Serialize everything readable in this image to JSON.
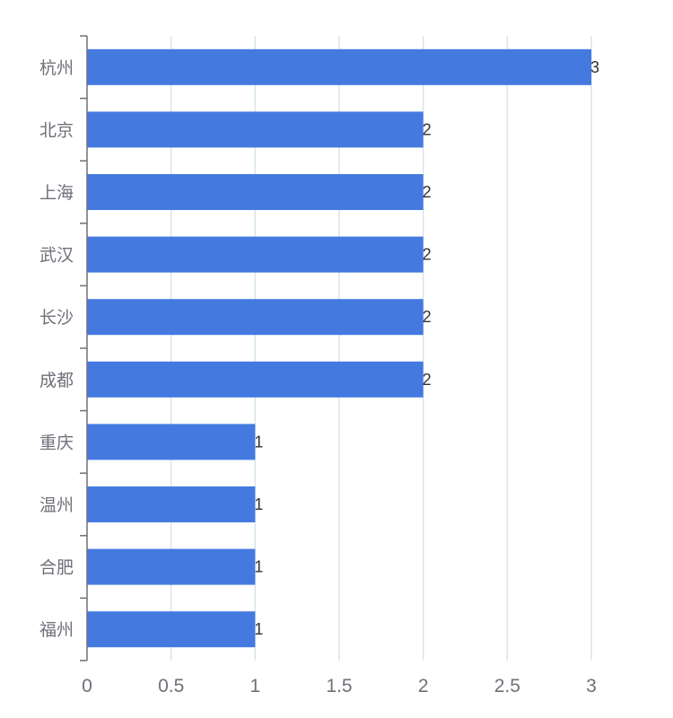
{
  "chart_data": {
    "type": "bar",
    "orientation": "horizontal",
    "categories": [
      "杭州",
      "北京",
      "上海",
      "武汉",
      "长沙",
      "成都",
      "重庆",
      "温州",
      "合肥",
      "福州"
    ],
    "values": [
      3,
      2,
      2,
      2,
      2,
      2,
      1,
      1,
      1,
      1
    ],
    "x_ticks": [
      "0",
      "0.5",
      "1",
      "1.5",
      "2",
      "2.5",
      "3"
    ],
    "xlim": [
      0,
      3
    ],
    "grid": "vertical",
    "data_labels": true,
    "bar_color": "#4479e0",
    "grid_color": "#d8e6ee",
    "axis_color": "#6e7079"
  }
}
